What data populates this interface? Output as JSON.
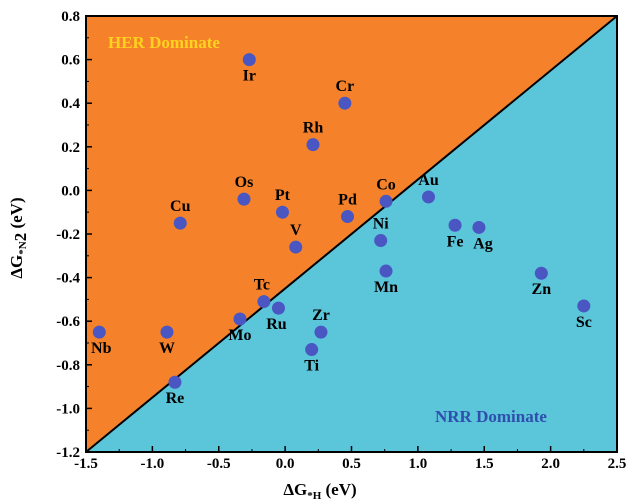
{
  "chart_data": {
    "type": "scatter",
    "xlim": [
      -1.5,
      2.5
    ],
    "ylim": [
      -1.2,
      0.8
    ],
    "xticks": [
      -1.5,
      -1.0,
      -0.5,
      0.0,
      0.5,
      1.0,
      1.5,
      2.0,
      2.5
    ],
    "xtick_labels": [
      "-1.5",
      "-1.0",
      "-0.5",
      "0.0",
      "0.5",
      "1.0",
      "1.5",
      "2.0",
      "2.5"
    ],
    "yticks": [
      -1.2,
      -1.0,
      -0.8,
      -0.6,
      -0.4,
      -0.2,
      0.0,
      0.2,
      0.4,
      0.6,
      0.8
    ],
    "ytick_labels": [
      "-1.2",
      "-1.0",
      "-0.8",
      "-0.6",
      "-0.4",
      "-0.2",
      "0.0",
      "0.2",
      "0.4",
      "0.6",
      "0.8"
    ],
    "xlabel": {
      "main": "ΔG",
      "sub": "*H",
      "unit": " (eV)"
    },
    "ylabel": {
      "main": "ΔG",
      "sub": "*N",
      "sub2": "2",
      "unit": " (eV)"
    },
    "regions": [
      {
        "label": "HER Dominate",
        "color": "#F5822A",
        "text_color": "#FFD21F"
      },
      {
        "label": "NRR Dominate",
        "color": "#5BC5D9",
        "text_color": "#2E4FAD"
      }
    ],
    "diagonal": [
      [
        -1.5,
        -1.2
      ],
      [
        2.5,
        0.8
      ]
    ],
    "marker_color": "#4A56C2",
    "points": [
      {
        "label": "Ir",
        "x": -0.27,
        "y": 0.6
      },
      {
        "label": "Cr",
        "x": 0.45,
        "y": 0.4
      },
      {
        "label": "Rh",
        "x": 0.21,
        "y": 0.21
      },
      {
        "label": "Os",
        "x": -0.31,
        "y": -0.04
      },
      {
        "label": "Pt",
        "x": -0.02,
        "y": -0.1
      },
      {
        "label": "Pd",
        "x": 0.47,
        "y": -0.12
      },
      {
        "label": "Co",
        "x": 0.76,
        "y": -0.05
      },
      {
        "label": "Au",
        "x": 1.08,
        "y": -0.03
      },
      {
        "label": "Cu",
        "x": -0.79,
        "y": -0.15
      },
      {
        "label": "V",
        "x": 0.08,
        "y": -0.26
      },
      {
        "label": "Ni",
        "x": 0.72,
        "y": -0.23
      },
      {
        "label": "Fe",
        "x": 1.28,
        "y": -0.16
      },
      {
        "label": "Ag",
        "x": 1.46,
        "y": -0.17
      },
      {
        "label": "Mn",
        "x": 0.76,
        "y": -0.37
      },
      {
        "label": "Zn",
        "x": 1.93,
        "y": -0.38
      },
      {
        "label": "Tc",
        "x": -0.16,
        "y": -0.51
      },
      {
        "label": "Ru",
        "x": -0.05,
        "y": -0.54
      },
      {
        "label": "Sc",
        "x": 2.25,
        "y": -0.53
      },
      {
        "label": "Mo",
        "x": -0.34,
        "y": -0.59
      },
      {
        "label": "Nb",
        "x": -1.4,
        "y": -0.65
      },
      {
        "label": "W",
        "x": -0.89,
        "y": -0.65
      },
      {
        "label": "Zr",
        "x": 0.27,
        "y": -0.65
      },
      {
        "label": "Ti",
        "x": 0.2,
        "y": -0.73
      },
      {
        "label": "Re",
        "x": -0.83,
        "y": -0.88
      }
    ]
  }
}
